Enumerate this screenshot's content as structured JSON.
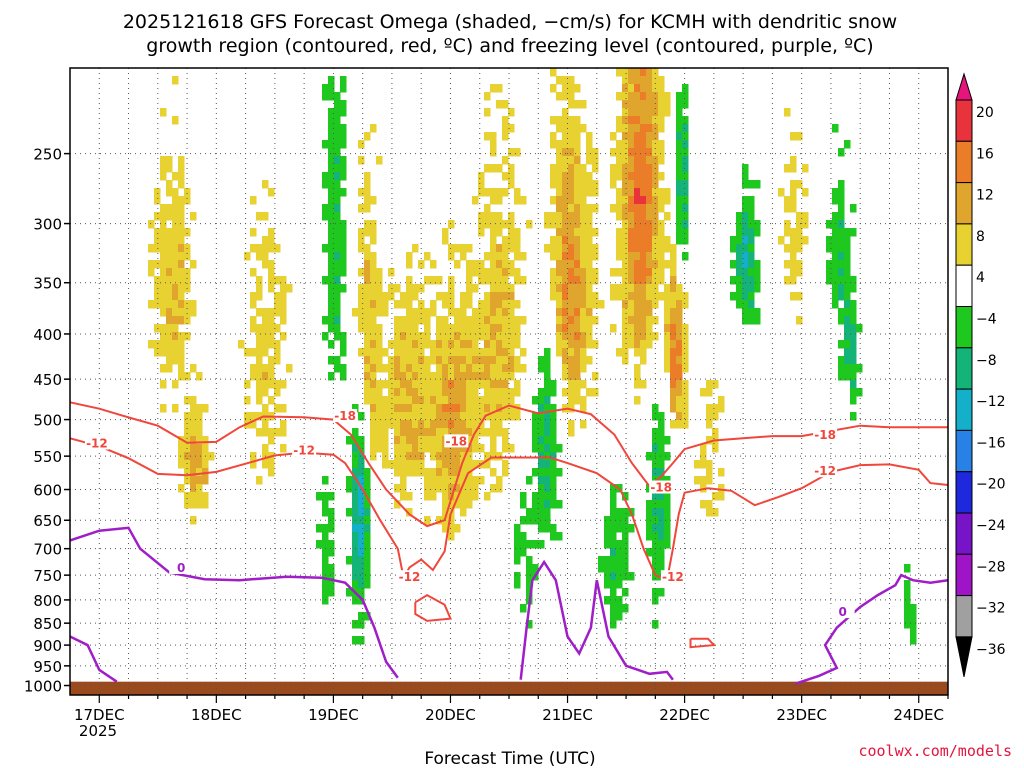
{
  "chart_data": {
    "type": "heatmap",
    "title_line1": "2025121618 GFS Forecast Omega (shaded, −cm/s) for KCMH with dendritic snow",
    "title_line2": "growth region (contoured, red, ºC) and freezing level (contoured, purple, ºC)",
    "xlabel": "Forecast Time (UTC)",
    "ylabel": "",
    "credit": "coolwx.com/models",
    "x_ticks": [
      "17DEC",
      "18DEC",
      "19DEC",
      "20DEC",
      "21DEC",
      "22DEC",
      "23DEC",
      "24DEC"
    ],
    "x_year": "2025",
    "x_range_days": [
      16.75,
      24.25
    ],
    "y_ticks": [
      250,
      300,
      350,
      400,
      450,
      500,
      550,
      600,
      650,
      700,
      750,
      800,
      850,
      900,
      950,
      1000
    ],
    "y_range_hpa": [
      200,
      1025
    ],
    "y_scale": "pressure",
    "grid": true,
    "colorbar": {
      "labels": [
        "20",
        "16",
        "12",
        "8",
        "4",
        "−4",
        "−8",
        "−12",
        "−16",
        "−20",
        "−24",
        "−28",
        "−32",
        "−36"
      ],
      "bands": [
        {
          "range": [
            16,
            20
          ],
          "color": "#e8323c"
        },
        {
          "range": [
            12,
            16
          ],
          "color": "#eb7d28"
        },
        {
          "range": [
            8,
            12
          ],
          "color": "#e0a52c"
        },
        {
          "range": [
            4,
            8
          ],
          "color": "#e8d232"
        },
        {
          "range": [
            -4,
            4
          ],
          "color": "#ffffff"
        },
        {
          "range": [
            -8,
            -4
          ],
          "color": "#1ec81e"
        },
        {
          "range": [
            -12,
            -8
          ],
          "color": "#14b478"
        },
        {
          "range": [
            -16,
            -12
          ],
          "color": "#14afc8"
        },
        {
          "range": [
            -20,
            -16
          ],
          "color": "#2882e6"
        },
        {
          "range": [
            -24,
            -20
          ],
          "color": "#1e28dc"
        },
        {
          "range": [
            -28,
            -24
          ],
          "color": "#7814c8"
        },
        {
          "range": [
            -32,
            -28
          ],
          "color": "#a014c8"
        },
        {
          "range": [
            -36,
            -32
          ],
          "color": "#a0a0a0"
        }
      ],
      "top_color": "#e6147d",
      "bottom_color": "#000000"
    },
    "colors": {
      "dgz": "#f0463c",
      "freezing": "#a01ec8",
      "terrain": "#9b4a1e"
    },
    "contours": {
      "dgz_minus12_label": "-12",
      "dgz_minus18_label": "-18",
      "freezing_label": "0",
      "dgz_minus12": [
        [
          16.75,
          525
        ],
        [
          17.0,
          536
        ],
        [
          17.25,
          553
        ],
        [
          17.5,
          576
        ],
        [
          17.75,
          578
        ],
        [
          18.0,
          573
        ],
        [
          18.25,
          561
        ],
        [
          18.5,
          549
        ],
        [
          18.75,
          545
        ],
        [
          19.0,
          548
        ],
        [
          19.1,
          560
        ],
        [
          19.25,
          600
        ],
        [
          19.4,
          650
        ],
        [
          19.55,
          700
        ],
        [
          19.6,
          755
        ],
        [
          19.65,
          735
        ],
        [
          19.75,
          720
        ],
        [
          19.85,
          740
        ],
        [
          19.95,
          705
        ],
        [
          20.0,
          640
        ],
        [
          20.15,
          575
        ],
        [
          20.35,
          552
        ],
        [
          20.6,
          552
        ],
        [
          20.85,
          552
        ],
        [
          21.0,
          560
        ],
        [
          21.25,
          575
        ],
        [
          21.45,
          600
        ],
        [
          21.55,
          640
        ],
        [
          21.65,
          700
        ],
        [
          21.75,
          750
        ],
        [
          21.85,
          760
        ],
        [
          21.9,
          700
        ],
        [
          21.95,
          640
        ],
        [
          22.0,
          605
        ],
        [
          22.2,
          598
        ],
        [
          22.4,
          602
        ],
        [
          22.6,
          625
        ],
        [
          22.8,
          612
        ],
        [
          23.0,
          598
        ],
        [
          23.25,
          573
        ],
        [
          23.5,
          563
        ],
        [
          23.75,
          562
        ],
        [
          24.0,
          570
        ],
        [
          24.1,
          590
        ],
        [
          24.25,
          593
        ]
      ],
      "dgz_minus18": [
        [
          16.75,
          478
        ],
        [
          17.0,
          486
        ],
        [
          17.2,
          495
        ],
        [
          17.5,
          508
        ],
        [
          17.75,
          531
        ],
        [
          18.0,
          530
        ],
        [
          18.2,
          510
        ],
        [
          18.4,
          496
        ],
        [
          18.75,
          497
        ],
        [
          19.0,
          500
        ],
        [
          19.15,
          520
        ],
        [
          19.3,
          560
        ],
        [
          19.45,
          600
        ],
        [
          19.65,
          640
        ],
        [
          19.8,
          660
        ],
        [
          19.95,
          650
        ],
        [
          20.1,
          560
        ],
        [
          20.2,
          520
        ],
        [
          20.3,
          495
        ],
        [
          20.5,
          482
        ],
        [
          20.75,
          492
        ],
        [
          21.0,
          486
        ],
        [
          21.2,
          493
        ],
        [
          21.4,
          520
        ],
        [
          21.55,
          560
        ],
        [
          21.7,
          595
        ],
        [
          21.8,
          580
        ],
        [
          21.9,
          560
        ],
        [
          22.0,
          540
        ],
        [
          22.25,
          528
        ],
        [
          22.5,
          525
        ],
        [
          22.75,
          522
        ],
        [
          23.0,
          522
        ],
        [
          23.25,
          515
        ],
        [
          23.5,
          508
        ],
        [
          23.75,
          510
        ],
        [
          24.0,
          510
        ],
        [
          24.25,
          510
        ]
      ],
      "dgz_minus12_blob1": [
        [
          19.7,
          805
        ],
        [
          19.8,
          790
        ],
        [
          19.95,
          810
        ],
        [
          20.0,
          840
        ],
        [
          19.8,
          845
        ],
        [
          19.7,
          830
        ],
        [
          19.7,
          805
        ]
      ],
      "dgz_minus12_blob2": [
        [
          22.05,
          885
        ],
        [
          22.2,
          885
        ],
        [
          22.25,
          900
        ],
        [
          22.05,
          905
        ],
        [
          22.05,
          885
        ]
      ],
      "freezing_0": [
        [
          16.75,
          685
        ],
        [
          17.0,
          668
        ],
        [
          17.25,
          663
        ],
        [
          17.35,
          700
        ],
        [
          17.6,
          745
        ],
        [
          17.9,
          758
        ],
        [
          18.2,
          760
        ],
        [
          18.6,
          753
        ],
        [
          18.9,
          755
        ],
        [
          19.1,
          765
        ],
        [
          19.25,
          800
        ],
        [
          19.35,
          860
        ],
        [
          19.45,
          940
        ],
        [
          19.55,
          980
        ]
      ],
      "freezing_0_b": [
        [
          20.6,
          985
        ],
        [
          20.65,
          860
        ],
        [
          20.7,
          760
        ],
        [
          20.8,
          725
        ],
        [
          20.9,
          760
        ],
        [
          21.0,
          880
        ],
        [
          21.1,
          920
        ],
        [
          21.2,
          860
        ],
        [
          21.25,
          760
        ],
        [
          21.35,
          880
        ],
        [
          21.5,
          950
        ],
        [
          21.7,
          970
        ],
        [
          21.85,
          965
        ],
        [
          21.9,
          985
        ]
      ],
      "freezing_0_c": [
        [
          16.75,
          880
        ],
        [
          16.9,
          900
        ],
        [
          17.0,
          960
        ],
        [
          17.15,
          990
        ]
      ],
      "freezing_0_d": [
        [
          22.95,
          995
        ],
        [
          23.15,
          975
        ],
        [
          23.3,
          955
        ],
        [
          23.2,
          900
        ],
        [
          23.3,
          860
        ],
        [
          23.5,
          815
        ],
        [
          23.65,
          790
        ],
        [
          23.8,
          770
        ],
        [
          23.85,
          750
        ],
        [
          23.95,
          760
        ],
        [
          24.1,
          765
        ],
        [
          24.25,
          760
        ]
      ]
    }
  }
}
